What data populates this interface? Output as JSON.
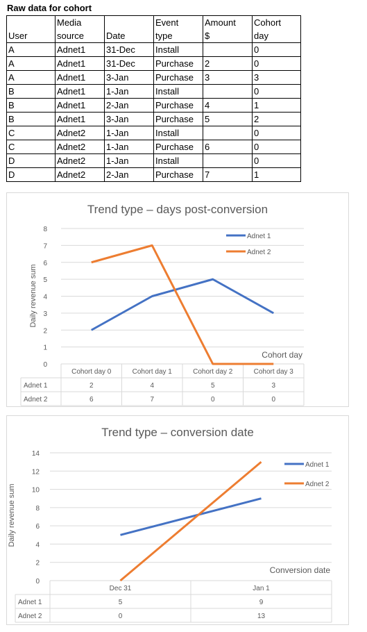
{
  "raw_data": {
    "title": "Raw data for cohort",
    "headers": [
      [
        "",
        "User"
      ],
      [
        "Media",
        "source"
      ],
      [
        "",
        "Date"
      ],
      [
        "Event",
        "type"
      ],
      [
        "Amount",
        "$"
      ],
      [
        "Cohort",
        "day"
      ]
    ],
    "rows": [
      [
        "A",
        "Adnet1",
        "31-Dec",
        "Install",
        "",
        "0"
      ],
      [
        "A",
        "Adnet1",
        "31-Dec",
        "Purchase",
        "2",
        "0"
      ],
      [
        "A",
        "Adnet1",
        "3-Jan",
        "Purchase",
        "3",
        "3"
      ],
      [
        "B",
        "Adnet1",
        "1-Jan",
        "Install",
        "",
        "0"
      ],
      [
        "B",
        "Adnet1",
        "2-Jan",
        "Purchase",
        "4",
        "1"
      ],
      [
        "B",
        "Adnet1",
        "3-Jan",
        "Purchase",
        "5",
        "2"
      ],
      [
        "C",
        "Adnet2",
        "1-Jan",
        "Install",
        "",
        "0"
      ],
      [
        "C",
        "Adnet2",
        "1-Jan",
        "Purchase",
        "6",
        "0"
      ],
      [
        "D",
        "Adnet2",
        "1-Jan",
        "Install",
        "",
        "0"
      ],
      [
        "D",
        "Adnet2",
        "2-Jan",
        "Purchase",
        "7",
        "1"
      ]
    ]
  },
  "chart_data": [
    {
      "type": "line",
      "title": "Trend type – days post-conversion",
      "xlabel": "Cohort day",
      "ylabel": "Daily revenue sum",
      "categories": [
        "Cohort day 0",
        "Cohort day 1",
        "Cohort day 2",
        "Cohort day 3"
      ],
      "ylim": [
        0,
        8
      ],
      "ytick_step": 1,
      "grid": true,
      "legend": "top-right",
      "data_table": true,
      "series": [
        {
          "name": "Adnet 1",
          "values": [
            2,
            4,
            5,
            3
          ],
          "color": "#4472c4"
        },
        {
          "name": "Adnet 2",
          "values": [
            6,
            7,
            0,
            0
          ],
          "color": "#ed7d31"
        }
      ]
    },
    {
      "type": "line",
      "title": "Trend type – conversion date",
      "xlabel": "Conversion date",
      "ylabel": "Daily revenue sum",
      "categories": [
        "Dec 31",
        "Jan 1"
      ],
      "ylim": [
        0,
        14
      ],
      "ytick_step": 2,
      "grid": true,
      "legend": "top-right",
      "data_table": true,
      "series": [
        {
          "name": "Adnet 1",
          "values": [
            5,
            9
          ],
          "color": "#4472c4"
        },
        {
          "name": "Adnet 2",
          "values": [
            0,
            13
          ],
          "color": "#ed7d31"
        }
      ]
    }
  ]
}
